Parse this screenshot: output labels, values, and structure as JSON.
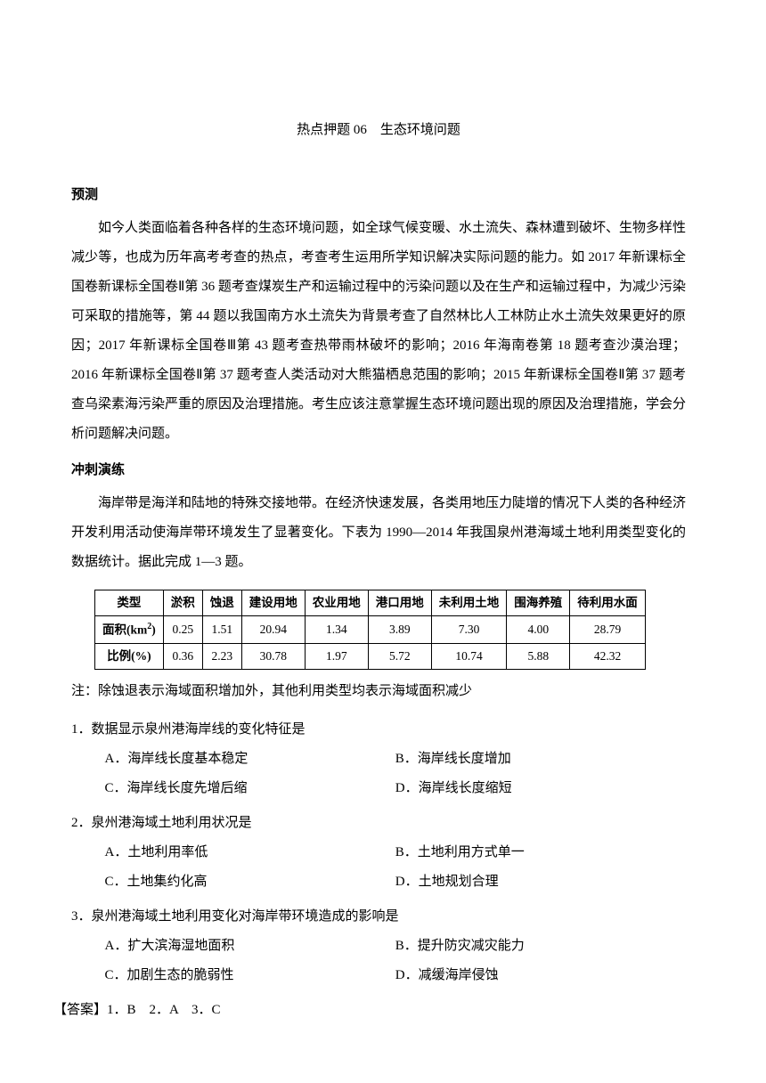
{
  "title": "热点押题 06　生态环境问题",
  "sections": {
    "prediction_heading": "预测",
    "prediction_body": "如今人类面临着各种各样的生态环境问题，如全球气候变暖、水土流失、森林遭到破坏、生物多样性减少等，也成为历年高考考查的热点，考查考生运用所学知识解决实际问题的能力。如 2017 年新课标全国卷新课标全国卷Ⅱ第 36 题考查煤炭生产和运输过程中的污染问题以及在生产和运输过程中，为减少污染可采取的措施等，第 44 题以我国南方水土流失为背景考查了自然林比人工林防止水土流失效果更好的原因；2017 年新课标全国卷Ⅲ第 43 题考查热带雨林破坏的影响；2016 年海南卷第 18 题考查沙漠治理；2016 年新课标全国卷Ⅱ第 37 题考查人类活动对大熊猫栖息范围的影响；2015 年新课标全国卷Ⅱ第 37 题考查乌梁素海污染严重的原因及治理措施。考生应该注意掌握生态环境问题出现的原因及治理措施，学会分析问题解决问题。",
    "practice_heading": "冲刺演练",
    "practice_intro": "海岸带是海洋和陆地的特殊交接地带。在经济快速发展，各类用地压力陡增的情况下人类的各种经济开发利用活动使海岸带环境发生了显著变化。下表为 1990—2014 年我国泉州港海域土地利用类型变化的数据统计。据此完成 1—3 题。"
  },
  "table": {
    "headers": [
      "类型",
      "淤积",
      "蚀退",
      "建设用地",
      "农业用地",
      "港口用地",
      "未利用土地",
      "围海养殖",
      "待利用水面"
    ],
    "row_labels": [
      "面积(km²)",
      "比例(%)"
    ],
    "rows": [
      [
        "0.25",
        "1.51",
        "20.94",
        "1.34",
        "3.89",
        "7.30",
        "4.00",
        "28.79"
      ],
      [
        "0.36",
        "2.23",
        "30.78",
        "1.97",
        "5.72",
        "10.74",
        "5.88",
        "42.32"
      ]
    ]
  },
  "note": "注：除蚀退表示海域面积增加外，其他利用类型均表示海域面积减少",
  "questions": [
    {
      "stem": "1．数据显示泉州港海岸线的变化特征是",
      "options": [
        "A．海岸线长度基本稳定",
        "B．海岸线长度增加",
        "C．海岸线长度先增后缩",
        "D．海岸线长度缩短"
      ]
    },
    {
      "stem": "2．泉州港海域土地利用状况是",
      "options": [
        "A．土地利用率低",
        "B．土地利用方式单一",
        "C．土地集约化高",
        "D．土地规划合理"
      ]
    },
    {
      "stem": "3．泉州港海域土地利用变化对海岸带环境造成的影响是",
      "options": [
        "A．扩大滨海湿地面积",
        "B．提升防灾减灾能力",
        "C．加剧生态的脆弱性",
        "D．减缓海岸侵蚀"
      ]
    }
  ],
  "answer": "【答案】1．B　2．A　3．C"
}
